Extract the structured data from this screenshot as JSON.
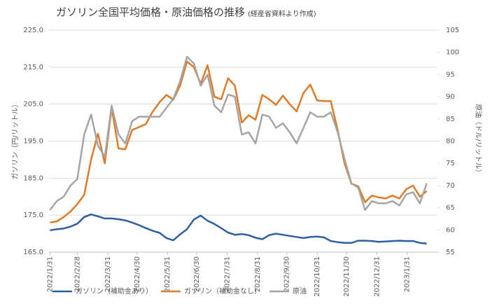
{
  "chart_data": {
    "type": "line",
    "title": "ガソリン全国平均価格・原油価格の推移",
    "subtitle": "(経産省資料より作成)",
    "y_label": "ガソリン（円/リットル）",
    "y2_label": "原油（ドル/リットル）",
    "x": [
      "2022/1/31",
      "2022/2/7",
      "2022/2/14",
      "2022/2/21",
      "2022/2/28",
      "2022/3/7",
      "2022/3/14",
      "2022/3/21",
      "2022/3/28",
      "2022/4/4",
      "2022/4/11",
      "2022/4/18",
      "2022/4/25",
      "2022/5/2",
      "2022/5/9",
      "2022/5/16",
      "2022/5/23",
      "2022/5/30",
      "2022/6/6",
      "2022/6/13",
      "2022/6/20",
      "2022/6/27",
      "2022/7/4",
      "2022/7/11",
      "2022/7/18",
      "2022/7/25",
      "2022/8/1",
      "2022/8/8",
      "2022/8/15",
      "2022/8/22",
      "2022/8/29",
      "2022/9/5",
      "2022/9/12",
      "2022/9/19",
      "2022/9/26",
      "2022/10/3",
      "2022/10/10",
      "2022/10/17",
      "2022/10/24",
      "2022/10/31",
      "2022/11/7",
      "2022/11/14",
      "2022/11/21",
      "2022/11/28",
      "2022/12/5",
      "2022/12/12",
      "2022/12/19",
      "2022/12/26",
      "2023/1/2",
      "2023/1/9",
      "2023/1/16",
      "2023/1/23",
      "2023/1/30",
      "2023/2/6",
      "2023/2/13",
      "2023/2/20"
    ],
    "xlim": [
      "2022/1/30",
      "2023/3/3"
    ],
    "xticks": [
      "2022/1/31",
      "2022/2/28",
      "2022/3/31",
      "2022/4/30",
      "2022/5/31",
      "2022/6/30",
      "2022/7/31",
      "2022/8/31",
      "2022/9/30",
      "2022/10/31",
      "2022/11/30",
      "2022/12/31",
      "2023/1/31"
    ],
    "ylim": [
      165,
      225
    ],
    "yticks": [
      {
        "value": 165,
        "label": "165.0"
      },
      {
        "value": 175,
        "label": "175.0"
      },
      {
        "value": 185,
        "label": "185.0"
      },
      {
        "value": 195,
        "label": "195.0"
      },
      {
        "value": 205,
        "label": "205.0"
      },
      {
        "value": 215,
        "label": "215.0"
      },
      {
        "value": 225,
        "label": "225.0"
      }
    ],
    "y2lim": [
      55,
      105
    ],
    "y2ticks": [
      55,
      60,
      65,
      70,
      75,
      80,
      85,
      90,
      95,
      100,
      105
    ],
    "grid": true,
    "legend": "bottom",
    "series": [
      {
        "name": "ガソリン（補助金あり）",
        "color": "#2e5fa3",
        "values": [
          170.9,
          171.2,
          171.4,
          171.9,
          172.7,
          174.5,
          175.2,
          174.7,
          174.1,
          174.1,
          173.9,
          173.6,
          173.0,
          172.3,
          171.5,
          170.8,
          170.2,
          168.8,
          168.2,
          169.8,
          171.2,
          173.8,
          174.9,
          173.5,
          172.6,
          171.5,
          170.3,
          169.7,
          169.9,
          169.6,
          168.9,
          168.5,
          169.6,
          170.0,
          169.7,
          169.4,
          169.1,
          168.8,
          169.1,
          169.2,
          169.0,
          168.0,
          167.7,
          167.5,
          167.5,
          168.1,
          168.1,
          168.0,
          167.8,
          167.9,
          168.0,
          168.1,
          168.0,
          168.0,
          167.5,
          167.3
        ]
      },
      {
        "name": "ガソリン（補助金なし）",
        "color": "#e07a26",
        "values": [
          173.0,
          173.3,
          174.5,
          176.0,
          178.0,
          180.5,
          190.0,
          197.0,
          189.0,
          204.0,
          193.0,
          192.8,
          198.0,
          198.8,
          199.6,
          203.0,
          205.5,
          207.5,
          206.2,
          210.0,
          216.5,
          215.0,
          210.5,
          215.5,
          207.0,
          206.3,
          212.0,
          210.0,
          200.0,
          202.0,
          200.8,
          207.5,
          206.3,
          204.8,
          207.3,
          205.0,
          203.0,
          208.0,
          210.3,
          206.0,
          205.8,
          205.8,
          198.0,
          189.0,
          183.5,
          182.8,
          178.5,
          180.3,
          179.8,
          179.5,
          180.3,
          179.5,
          182.0,
          183.0,
          180.0,
          181.5
        ]
      },
      {
        "name": "原油",
        "color": "#a5a5a5",
        "axis": "y2",
        "values": [
          64.5,
          66.5,
          67.5,
          70.0,
          71.5,
          81.5,
          86.0,
          79.0,
          76.5,
          88.0,
          81.5,
          79.5,
          84.5,
          85.5,
          85.5,
          85.5,
          85.5,
          87.5,
          89.5,
          93.5,
          99.0,
          97.5,
          92.5,
          95.0,
          88.0,
          86.5,
          90.5,
          90.0,
          81.5,
          82.0,
          79.5,
          86.0,
          85.5,
          83.0,
          84.0,
          82.0,
          79.5,
          83.0,
          86.5,
          85.5,
          85.5,
          86.5,
          82.0,
          76.0,
          70.5,
          69.5,
          64.5,
          66.5,
          66.0,
          66.0,
          66.5,
          65.5,
          68.0,
          68.5,
          66.0,
          70.5
        ]
      }
    ]
  }
}
